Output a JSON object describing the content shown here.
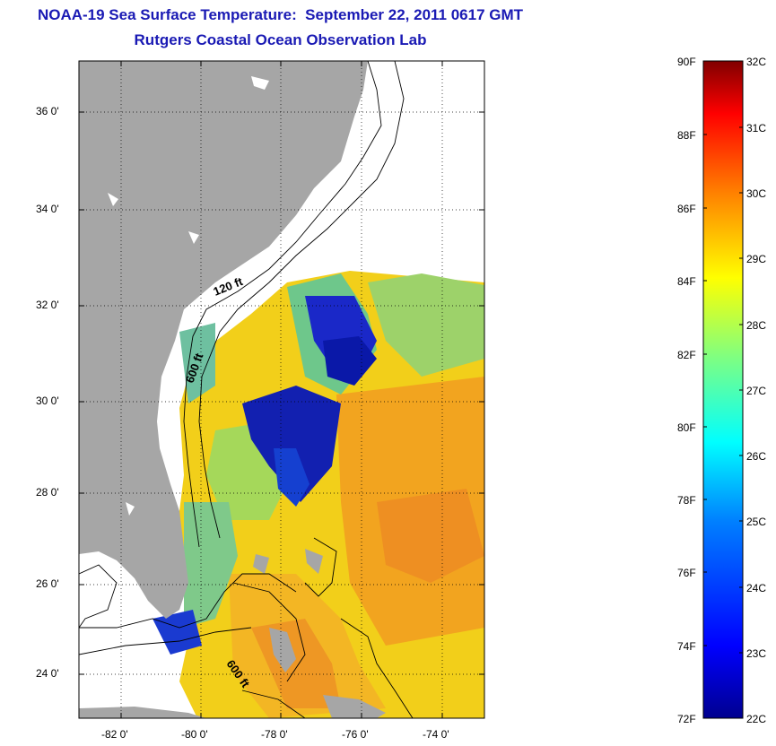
{
  "title_line1": "NOAA-19 Sea Surface Temperature:  September 22, 2011 0617 GMT",
  "title_line2": "Rutgers Coastal Ocean Observation Lab",
  "lat_labels": [
    "36 0'",
    "34 0'",
    "32 0'",
    "30 0'",
    "28 0'",
    "26 0'",
    "24 0'"
  ],
  "lon_labels": [
    "-82 0'",
    "-80 0'",
    "-78 0'",
    "-76 0'",
    "-74 0'"
  ],
  "contour_labels": [
    "120 ft",
    "600 ft",
    "600 ft"
  ],
  "colorbar": {
    "fahrenheit": [
      "90F",
      "88F",
      "86F",
      "84F",
      "82F",
      "80F",
      "78F",
      "76F",
      "74F",
      "72F"
    ],
    "celsius": [
      "32C",
      "31C",
      "30C",
      "29C",
      "28C",
      "27C",
      "26C",
      "25C",
      "24C",
      "23C",
      "22C"
    ],
    "colors": [
      "#00008f",
      "#0000ff",
      "#0080ff",
      "#00ffff",
      "#80ff80",
      "#ffff00",
      "#ff8000",
      "#ff0000",
      "#800000"
    ]
  },
  "land_color": "#a6a6a6"
}
